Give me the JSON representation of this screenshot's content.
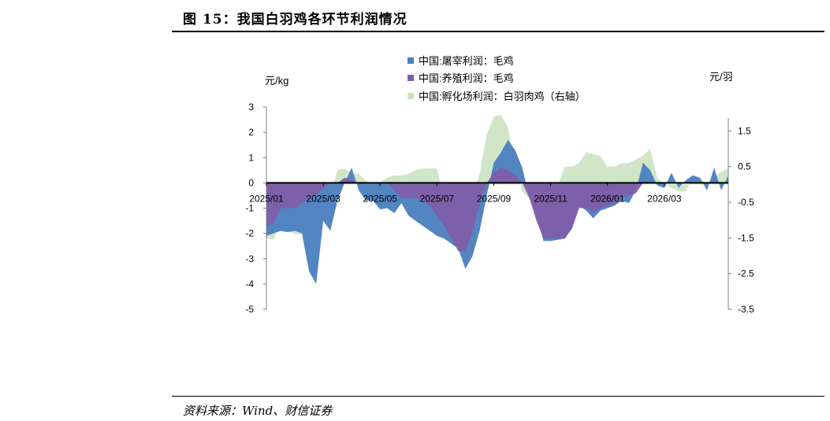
{
  "title": "图 15：我国白羽鸡各环节利润情况",
  "source": "资料来源：Wind、财信证券",
  "chart_data": {
    "type": "area",
    "left_axis_unit": "元/kg",
    "right_axis_unit": "元/羽",
    "left_ylim": [
      -5,
      3
    ],
    "left_ticks": [
      3,
      2,
      1,
      0,
      -1,
      -2,
      -3,
      -4,
      -5
    ],
    "right_ylim": [
      -3.5,
      2.17
    ],
    "right_ticks": [
      1.5,
      0.5,
      -0.5,
      -1.5,
      -2.5,
      -3.5
    ],
    "x_ticks": [
      "2025/01",
      "2025/03",
      "2025/05",
      "2025/07",
      "2025/09",
      "2025/11",
      "2026/01",
      "2026/03"
    ],
    "x_tick_weeks": [
      0,
      8,
      16,
      24,
      32,
      40,
      48,
      56
    ],
    "legend_position": "top-center",
    "series": [
      {
        "name": "中国:屠宰利润：毛鸡",
        "axis": "left",
        "color": "#4a7ec0",
        "values": [
          -2.1,
          -2.0,
          -1.9,
          -1.95,
          -1.9,
          -2.0,
          -3.5,
          -4.0,
          -1.5,
          -1.9,
          -0.7,
          0.0,
          0.6,
          -0.3,
          -0.7,
          -0.7,
          -1.05,
          -1.0,
          -1.2,
          -0.8,
          -1.3,
          -1.5,
          -1.7,
          -1.9,
          -2.1,
          -2.2,
          -2.4,
          -2.6,
          -3.4,
          -2.9,
          -1.9,
          -0.5,
          0.8,
          1.2,
          1.7,
          1.3,
          0.6,
          -0.6,
          -1.2,
          -2.3,
          -2.3,
          -2.25,
          -2.2,
          -1.8,
          -0.9,
          -1.1,
          -1.4,
          -1.1,
          -1.0,
          -0.9,
          -0.7,
          -0.8,
          -0.3,
          0.8,
          0.5,
          -0.1,
          -0.2,
          0.4,
          -0.2,
          0.1,
          0.3,
          0.2,
          -0.3,
          0.6,
          -0.3,
          0.3
        ],
        "zero_at": []
      },
      {
        "name": "中国:养殖利润：毛鸡",
        "axis": "left",
        "color": "#7e5ea8",
        "values": [
          -1.7,
          -1.6,
          -1.0,
          -1.0,
          -1.0,
          -0.8,
          -0.6,
          -0.5,
          -0.2,
          0.0,
          0.0,
          0.2,
          0.1,
          0.0,
          0.0,
          0.0,
          0.0,
          0.0,
          -0.3,
          -0.6,
          -0.6,
          -0.6,
          -0.7,
          -0.9,
          -1.3,
          -1.7,
          -2.2,
          -2.7,
          -2.7,
          -2.0,
          -0.8,
          0.0,
          0.4,
          0.6,
          0.5,
          0.3,
          0.0,
          -0.6,
          -1.5,
          -2.2,
          -2.2,
          -2.2,
          -2.2,
          -1.8,
          -1.0,
          -1.0,
          -1.2,
          -1.0,
          -0.9,
          -0.8,
          -0.6,
          -0.5,
          -0.4,
          0.0,
          0.0,
          0.0,
          0.0,
          0.0,
          0.0,
          0.0,
          0.0,
          0.0,
          0.0,
          0.0,
          0.0,
          0.0
        ],
        "zero_at": []
      },
      {
        "name": "中国:孵化场利润：白羽肉鸡（右轴）",
        "axis": "right",
        "color": "#c9e2bf",
        "values": [
          -1.5,
          -1.55,
          -1.1,
          -1.3,
          -1.4,
          -1.4,
          -1.2,
          -1.0,
          -0.6,
          -0.3,
          0.4,
          0.45,
          0.3,
          0.3,
          0.1,
          0.0,
          0.05,
          0.2,
          0.25,
          0.25,
          0.3,
          0.4,
          0.45,
          0.45,
          0.45,
          -0.4,
          -0.7,
          -0.8,
          -0.7,
          -0.4,
          0.3,
          1.4,
          1.9,
          1.95,
          1.6,
          0.5,
          -0.2,
          -0.4,
          -0.4,
          -0.4,
          -0.2,
          0.0,
          0.5,
          0.5,
          0.6,
          0.9,
          0.85,
          0.8,
          0.5,
          0.5,
          0.6,
          0.6,
          0.7,
          0.8,
          1.0,
          0.2,
          0.0,
          -0.1,
          -0.2,
          -0.2,
          0.2,
          0.2,
          0.0,
          0.2,
          0.35,
          0.45
        ],
        "zero_at": []
      }
    ]
  }
}
